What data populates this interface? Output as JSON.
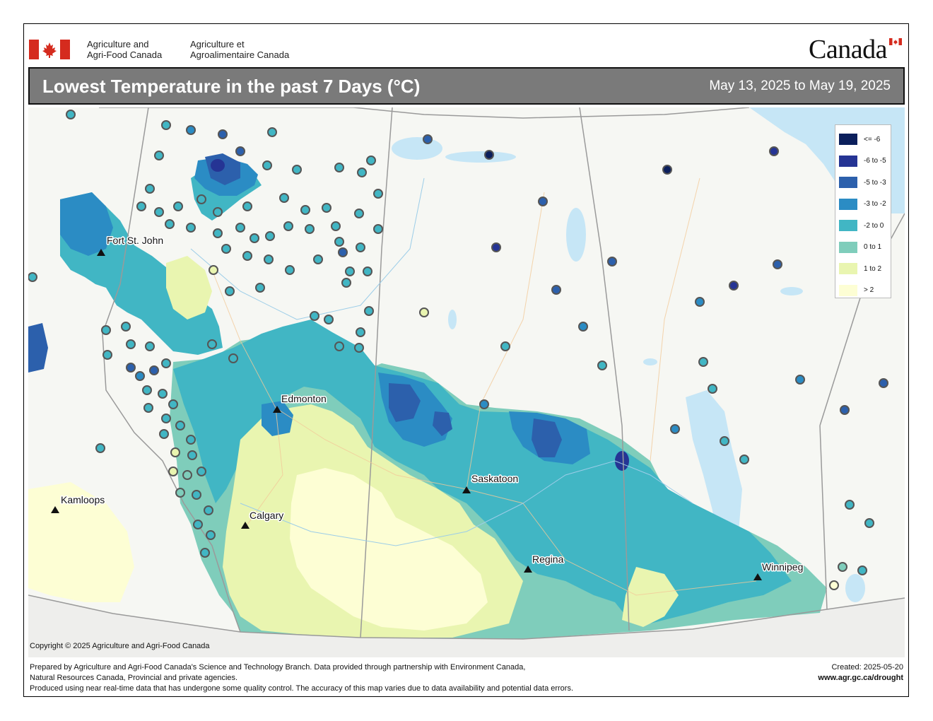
{
  "header": {
    "dept_en_line1": "Agriculture and",
    "dept_en_line2": "Agri-Food Canada",
    "dept_fr_line1": "Agriculture et",
    "dept_fr_line2": "Agroalimentaire Canada",
    "wordmark": "Canada"
  },
  "title": {
    "text": "Lowest Temperature in the past 7 Days (°C)",
    "date_range": "May 13, 2025 to May 19, 2025"
  },
  "legend": {
    "items": [
      {
        "label": "<= -6",
        "color": "#0b1f5c"
      },
      {
        "label": "-6 to -5",
        "color": "#253494"
      },
      {
        "label": "-5 to -3",
        "color": "#2c60ac"
      },
      {
        "label": "-3 to -2",
        "color": "#2b8cc4"
      },
      {
        "label": "-2 to 0",
        "color": "#41b6c4"
      },
      {
        "label": "0 to 1",
        "color": "#7fcdbb"
      },
      {
        "label": "1 to 2",
        "color": "#e9f5b0"
      },
      {
        "label": "> 2",
        "color": "#fdfed4"
      }
    ]
  },
  "cities": [
    {
      "name": "Fort St. John"
    },
    {
      "name": "Edmonton"
    },
    {
      "name": "Kamloops"
    },
    {
      "name": "Calgary"
    },
    {
      "name": "Saskatoon"
    },
    {
      "name": "Regina"
    },
    {
      "name": "Winnipeg"
    }
  ],
  "colors": {
    "land": "#f6f7f3",
    "water": "#c6e6f6",
    "border": "#9a9a9a",
    "station_outline": "#666666"
  },
  "footer": {
    "copyright": "Copyright © 2025 Agriculture and Agri-Food Canada",
    "line1": "Prepared by Agriculture and Agri-Food Canada's Science and Technology Branch. Data provided through partnership with Environment Canada,",
    "line2": "Natural Resources Canada, Provincial and private agencies.",
    "line3": "Produced using near real-time data that has undergone some quality control. The accuracy of this map varies due to data availability and potential data errors.",
    "created": "Created: 2025-05-20",
    "url": "www.agr.gc.ca/drought"
  }
}
